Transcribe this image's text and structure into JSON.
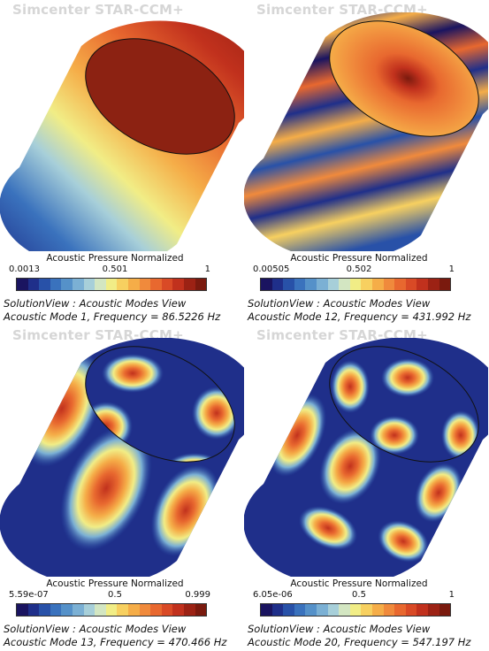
{
  "watermark": "Simcenter STAR-CCM+",
  "colormap": [
    "#1a1460",
    "#1f2f8a",
    "#2851a8",
    "#3a72bd",
    "#5591c9",
    "#7bb0d4",
    "#a7cfd9",
    "#d3e6c2",
    "#f1ed86",
    "#f7d060",
    "#f5ad48",
    "#f08a3c",
    "#e8682f",
    "#d94a26",
    "#c1311d",
    "#9c2214",
    "#7a1a0e"
  ],
  "panels": [
    {
      "colorbar_title": "Acoustic Pressure Normalized",
      "tick_min": "0.0013",
      "tick_mid": "0.501",
      "tick_max": "1",
      "caption_line1": "SolutionView : Acoustic Modes View",
      "caption_line2": "Acoustic Mode 1, Frequency = 86.5226 Hz"
    },
    {
      "colorbar_title": "Acoustic Pressure Normalized",
      "tick_min": "0.00505",
      "tick_mid": "0.502",
      "tick_max": "1",
      "caption_line1": "SolutionView : Acoustic Modes View",
      "caption_line2": "Acoustic Mode 12, Frequency = 431.992 Hz"
    },
    {
      "colorbar_title": "Acoustic Pressure Normalized",
      "tick_min": "5.59e-07",
      "tick_mid": "0.5",
      "tick_max": "0.999",
      "caption_line1": "SolutionView : Acoustic Modes View",
      "caption_line2": "Acoustic Mode 13, Frequency = 470.466 Hz"
    },
    {
      "colorbar_title": "Acoustic Pressure Normalized",
      "tick_min": "6.05e-06",
      "tick_mid": "0.5",
      "tick_max": "1",
      "caption_line1": "SolutionView : Acoustic Modes View",
      "caption_line2": "Acoustic Mode 20, Frequency = 547.197 Hz"
    }
  ]
}
